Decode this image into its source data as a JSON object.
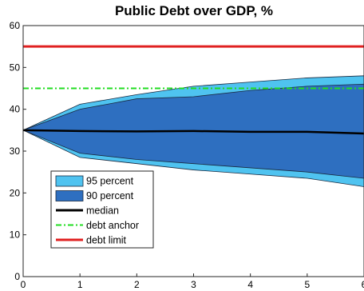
{
  "chart_data": {
    "type": "area",
    "title": "Public Debt over GDP, %",
    "xlabel": "",
    "ylabel": "",
    "x": [
      0,
      1,
      2,
      3,
      4,
      5,
      6
    ],
    "xlim": [
      0,
      6
    ],
    "ylim": [
      0,
      60
    ],
    "xticks": [
      0,
      1,
      2,
      3,
      4,
      5,
      6
    ],
    "yticks": [
      0,
      10,
      20,
      30,
      40,
      50,
      60
    ],
    "grid": false,
    "legend_position": "lower-left",
    "series": [
      {
        "name": "95 percent",
        "kind": "band",
        "color": "#4fc3f0",
        "upper": [
          35,
          41.2,
          43.5,
          45.5,
          46.5,
          47.5,
          48
        ],
        "lower": [
          35,
          28.5,
          27,
          25.5,
          24.5,
          23.5,
          21.5
        ]
      },
      {
        "name": "90 percent",
        "kind": "band",
        "color": "#2e6fc0",
        "upper": [
          35,
          40,
          42.5,
          43,
          44.5,
          45.5,
          46
        ],
        "lower": [
          35,
          29.5,
          28,
          27,
          26,
          25,
          23.5
        ]
      },
      {
        "name": "median",
        "kind": "line",
        "color": "#000000",
        "values": [
          35,
          34.8,
          34.7,
          34.8,
          34.6,
          34.6,
          34.2
        ]
      },
      {
        "name": "debt anchor",
        "kind": "hline",
        "color": "#22dd22",
        "dash": true,
        "value": 45
      },
      {
        "name": "debt limit",
        "kind": "hline",
        "color": "#e02020",
        "dash": false,
        "value": 55
      }
    ]
  }
}
